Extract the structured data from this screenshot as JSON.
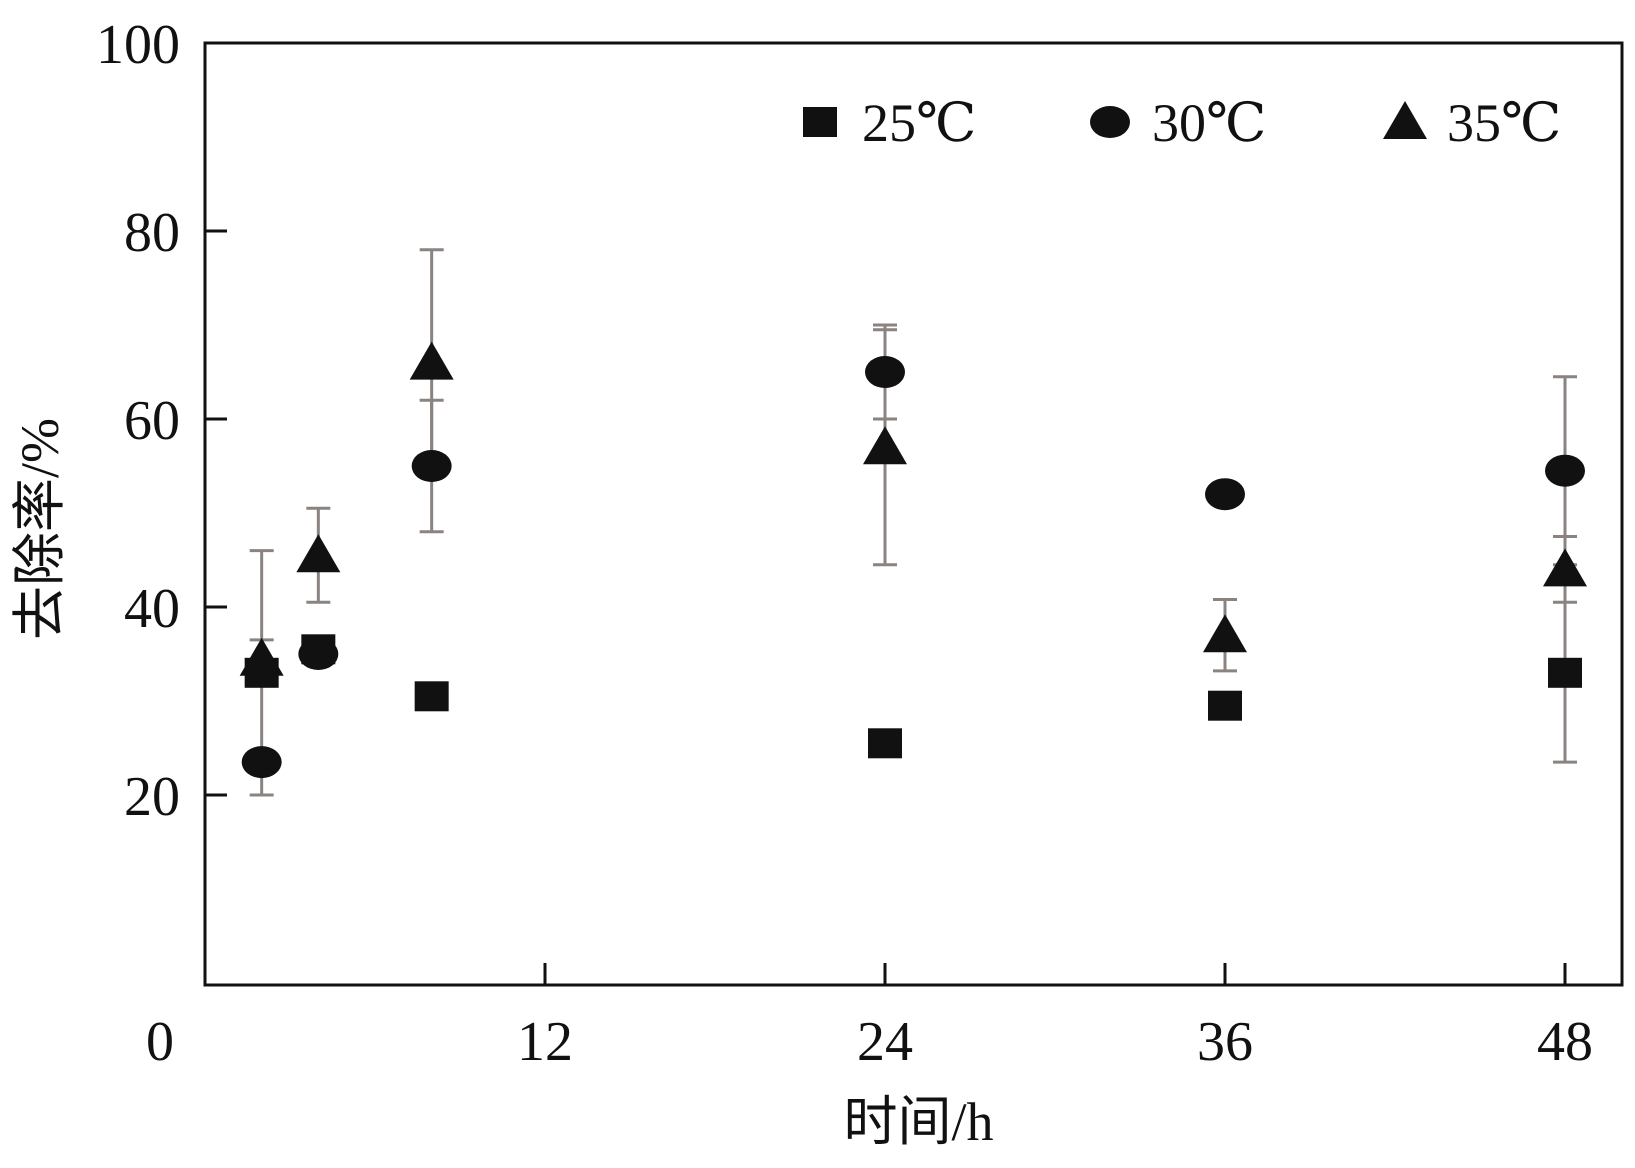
{
  "chart_data": {
    "type": "scatter",
    "title": "",
    "xlabel": "时间/h",
    "ylabel": "去除率/%",
    "xlim": [
      0,
      50
    ],
    "ylim": [
      0,
      100
    ],
    "x_ticks": [
      0,
      12,
      24,
      36,
      48
    ],
    "y_ticks": [
      20,
      40,
      60,
      80,
      100
    ],
    "grid": false,
    "legend_position": "top-right",
    "error_bars": true,
    "series": [
      {
        "name": "25℃",
        "marker": "square",
        "color": "#111111",
        "points": [
          {
            "x": 2,
            "y": 33.0,
            "err": 13.0
          },
          {
            "x": 4,
            "y": 35.5,
            "err": 0
          },
          {
            "x": 8,
            "y": 30.5,
            "err": 0
          },
          {
            "x": 24,
            "y": 25.5,
            "err": 0
          },
          {
            "x": 36,
            "y": 29.5,
            "err": 0
          },
          {
            "x": 48,
            "y": 33.0,
            "err": 9.5
          }
        ]
      },
      {
        "name": "30℃",
        "marker": "circle",
        "color": "#111111",
        "points": [
          {
            "x": 2,
            "y": 23.5,
            "err": 0
          },
          {
            "x": 4,
            "y": 35.0,
            "err": 0
          },
          {
            "x": 8,
            "y": 55.0,
            "err": 7.0
          },
          {
            "x": 24,
            "y": 65.0,
            "err": 5.0
          },
          {
            "x": 36,
            "y": 52.0,
            "err": 0
          },
          {
            "x": 48,
            "y": 54.5,
            "err": 10.0
          }
        ]
      },
      {
        "name": "35℃",
        "marker": "triangle",
        "color": "#111111",
        "points": [
          {
            "x": 2,
            "y": 34.5,
            "err": 2.0
          },
          {
            "x": 4,
            "y": 45.5,
            "err": 5.0
          },
          {
            "x": 8,
            "y": 66.0,
            "err": 12.0
          },
          {
            "x": 24,
            "y": 57.0,
            "err": 12.5
          },
          {
            "x": 36,
            "y": 37.0,
            "err": 3.8
          },
          {
            "x": 48,
            "y": 44.0,
            "err": 3.5
          }
        ]
      }
    ]
  }
}
